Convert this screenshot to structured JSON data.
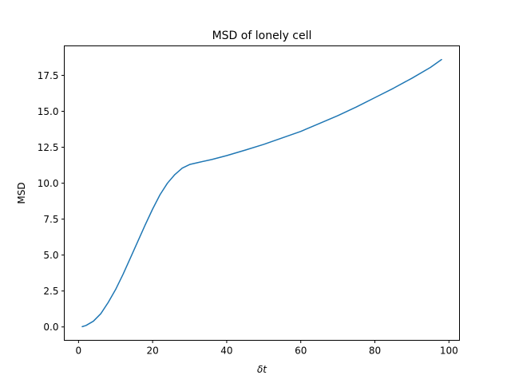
{
  "chart_data": {
    "type": "line",
    "title": "MSD of lonely cell",
    "xlabel": "δt",
    "ylabel": "MSD",
    "xlim": [
      -3.85,
      102.85
    ],
    "ylim": [
      -0.93,
      19.55
    ],
    "xticks": [
      0,
      20,
      40,
      60,
      80,
      100
    ],
    "yticks": [
      0.0,
      2.5,
      5.0,
      7.5,
      10.0,
      12.5,
      15.0,
      17.5
    ],
    "ytick_format": 1,
    "grid": false,
    "legend": "none",
    "series": [
      {
        "color": "#1f77b4",
        "x": [
          1,
          2,
          4,
          6,
          8,
          10,
          12,
          14,
          16,
          18,
          20,
          22,
          24,
          26,
          28,
          30,
          32,
          36,
          40,
          45,
          50,
          55,
          60,
          65,
          70,
          75,
          80,
          85,
          90,
          95,
          98
        ],
        "y": [
          0.02,
          0.1,
          0.4,
          0.92,
          1.7,
          2.6,
          3.65,
          4.8,
          5.95,
          7.1,
          8.2,
          9.2,
          10.0,
          10.6,
          11.05,
          11.3,
          11.42,
          11.65,
          11.92,
          12.3,
          12.7,
          13.15,
          13.6,
          14.15,
          14.7,
          15.3,
          15.95,
          16.6,
          17.3,
          18.05,
          18.6
        ]
      }
    ]
  }
}
